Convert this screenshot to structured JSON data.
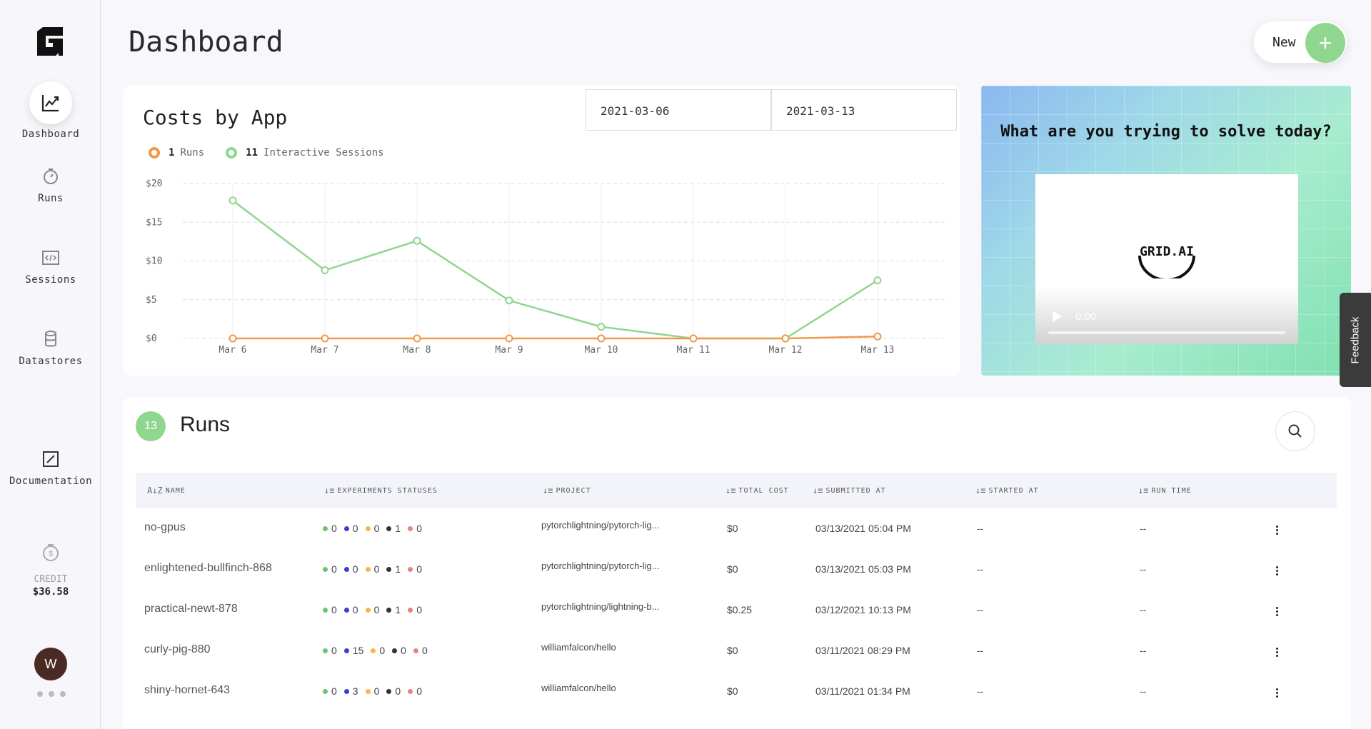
{
  "sidebar": {
    "items": [
      {
        "label": "Dashboard",
        "icon": "chart-line-icon"
      },
      {
        "label": "Runs",
        "icon": "stopwatch-icon"
      },
      {
        "label": "Sessions",
        "icon": "code-file-icon"
      },
      {
        "label": "Datastores",
        "icon": "database-icon"
      },
      {
        "label": "Documentation",
        "icon": "edit-icon"
      }
    ],
    "credit_label": "CREDIT",
    "credit_value": "$36.58",
    "avatar_initial": "W"
  },
  "header": {
    "title": "Dashboard",
    "new_label": "New",
    "new_icon": "+"
  },
  "chart_card": {
    "title": "Costs by App",
    "date_from": "2021-03-06",
    "date_to": "2021-03-13",
    "legend": [
      {
        "count": "1",
        "label": "Runs",
        "color": "#f0994a"
      },
      {
        "count": "11",
        "label": "Interactive Sessions",
        "color": "#8fd68f"
      }
    ]
  },
  "chart_data": {
    "type": "line",
    "categories": [
      "Mar 6",
      "Mar 7",
      "Mar 8",
      "Mar 9",
      "Mar 10",
      "Mar 11",
      "Mar 12",
      "Mar 13"
    ],
    "series": [
      {
        "name": "Interactive Sessions",
        "color": "#8fd68f",
        "values": [
          17.8,
          8.8,
          12.6,
          4.9,
          1.5,
          0,
          0,
          7.5
        ]
      },
      {
        "name": "Runs",
        "color": "#f0994a",
        "values": [
          0,
          0,
          0,
          0,
          0,
          0,
          0,
          0.25
        ]
      }
    ],
    "y_ticks": [
      "$0",
      "$5",
      "$10",
      "$15",
      "$20"
    ],
    "ylim": [
      0,
      20
    ],
    "grid": true
  },
  "promo": {
    "title": "What are you trying to solve today?",
    "logo_text": "GRID.AI",
    "video_time": "0:00"
  },
  "feedback_label": "Feedback",
  "runs": {
    "count": "13",
    "title": "Runs",
    "columns": [
      "NAME",
      "EXPERIMENTS STATUSES",
      "PROJECT",
      "TOTAL COST",
      "SUBMITTED AT",
      "STARTED AT",
      "RUN TIME"
    ],
    "status_colors": [
      "#6cc56c",
      "#3b3bd6",
      "#f2b84a",
      "#333333",
      "#e8847a"
    ],
    "rows": [
      {
        "name": "no-gpus",
        "statuses": [
          "0",
          "0",
          "0",
          "1",
          "0"
        ],
        "project": "pytorchlightning/pytorch-lig...",
        "cost": "$0",
        "submitted": "03/13/2021 05:04 PM",
        "started": "--",
        "runtime": "--"
      },
      {
        "name": "enlightened-bullfinch-868",
        "statuses": [
          "0",
          "0",
          "0",
          "1",
          "0"
        ],
        "project": "pytorchlightning/pytorch-lig...",
        "cost": "$0",
        "submitted": "03/13/2021 05:03 PM",
        "started": "--",
        "runtime": "--"
      },
      {
        "name": "practical-newt-878",
        "statuses": [
          "0",
          "0",
          "0",
          "1",
          "0"
        ],
        "project": "pytorchlightning/lightning-b...",
        "cost": "$0.25",
        "submitted": "03/12/2021 10:13 PM",
        "started": "--",
        "runtime": "--"
      },
      {
        "name": "curly-pig-880",
        "statuses": [
          "0",
          "15",
          "0",
          "0",
          "0"
        ],
        "project": "williamfalcon/hello",
        "cost": "$0",
        "submitted": "03/11/2021 08:29 PM",
        "started": "--",
        "runtime": "--"
      },
      {
        "name": "shiny-hornet-643",
        "statuses": [
          "0",
          "3",
          "0",
          "0",
          "0"
        ],
        "project": "williamfalcon/hello",
        "cost": "$0",
        "submitted": "03/11/2021 01:34 PM",
        "started": "--",
        "runtime": "--"
      }
    ]
  }
}
